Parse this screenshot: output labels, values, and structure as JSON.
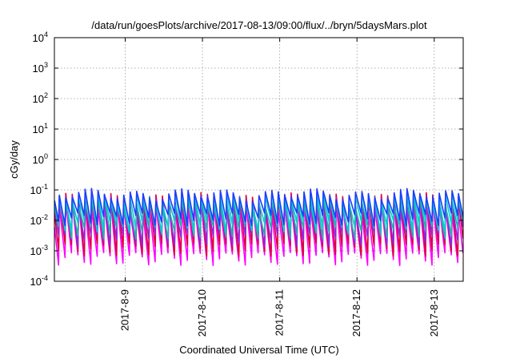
{
  "chart_data": {
    "type": "line",
    "title": "/data/run/goesPlots/archive/2017-08-13/09:00/flux/../bryn/5daysMars.plot",
    "xlabel": "Coordinated Universal Time (UTC)",
    "ylabel": "cGy/day",
    "yscale": "log",
    "ylim": [
      0.0001,
      10000
    ],
    "xlim": [
      "2017-08-08T02:00",
      "2017-08-13T09:00"
    ],
    "grid": true,
    "legend": "none",
    "y_ticks": [
      {
        "base": "10",
        "exp": "4"
      },
      {
        "base": "10",
        "exp": "3"
      },
      {
        "base": "10",
        "exp": "2"
      },
      {
        "base": "10",
        "exp": "1"
      },
      {
        "base": "10",
        "exp": "0"
      },
      {
        "base": "10",
        "exp": "-1"
      },
      {
        "base": "10",
        "exp": "-2"
      },
      {
        "base": "10",
        "exp": "-3"
      },
      {
        "base": "10",
        "exp": "-4"
      }
    ],
    "x_ticks": [
      "2017-8-9",
      "2017-8-10",
      "2017-8-11",
      "2017-8-12",
      "2017-8-13"
    ],
    "sawtooth_period_hours": 2,
    "series": [
      {
        "color": "#ff00ff",
        "peak": 0.028,
        "trough": 0.0006
      },
      {
        "color": "#e0003a",
        "peak": 0.055,
        "trough": 0.0012
      },
      {
        "color": "#8a2be2",
        "peak": 0.045,
        "trough": 0.0025
      },
      {
        "color": "#20b2aa",
        "peak": 0.038,
        "trough": 0.0045
      },
      {
        "color": "#00ced1",
        "peak": 0.06,
        "trough": 0.007
      },
      {
        "color": "#1e3cff",
        "peak": 0.075,
        "trough": 0.012
      }
    ]
  }
}
